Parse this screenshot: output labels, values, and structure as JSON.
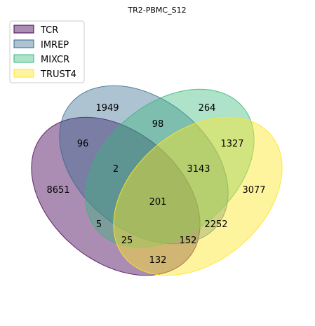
{
  "title": "TR2-PBMC_S12",
  "sets": [
    {
      "name": "TCR",
      "fill": "#440154",
      "edge": "#440154"
    },
    {
      "name": "IMREP",
      "fill": "#31688e",
      "edge": "#31688e"
    },
    {
      "name": "MIXCR",
      "fill": "#35b779",
      "edge": "#35b779"
    },
    {
      "name": "TRUST4",
      "fill": "#fde725",
      "edge": "#fde725"
    }
  ],
  "regions": {
    "TCR": "8651",
    "IMREP": "1949",
    "MIXCR": "264",
    "TRUST4": "3077",
    "TCR_IMREP": "96",
    "IMREP_MIXCR": "98",
    "MIXCR_TRUST4": "1327",
    "TCR_IMREP_MIXCR": "2",
    "IMREP_MIXCR_TRUST4": "3143",
    "ALL": "201",
    "TCR_MIXCR": "5",
    "IMREP_TRUST4": "2252",
    "TCR_MIXCR_TRUST4": "25",
    "TCR_IMREP_TRUST4": "152",
    "TCR_TRUST4": "132"
  }
}
